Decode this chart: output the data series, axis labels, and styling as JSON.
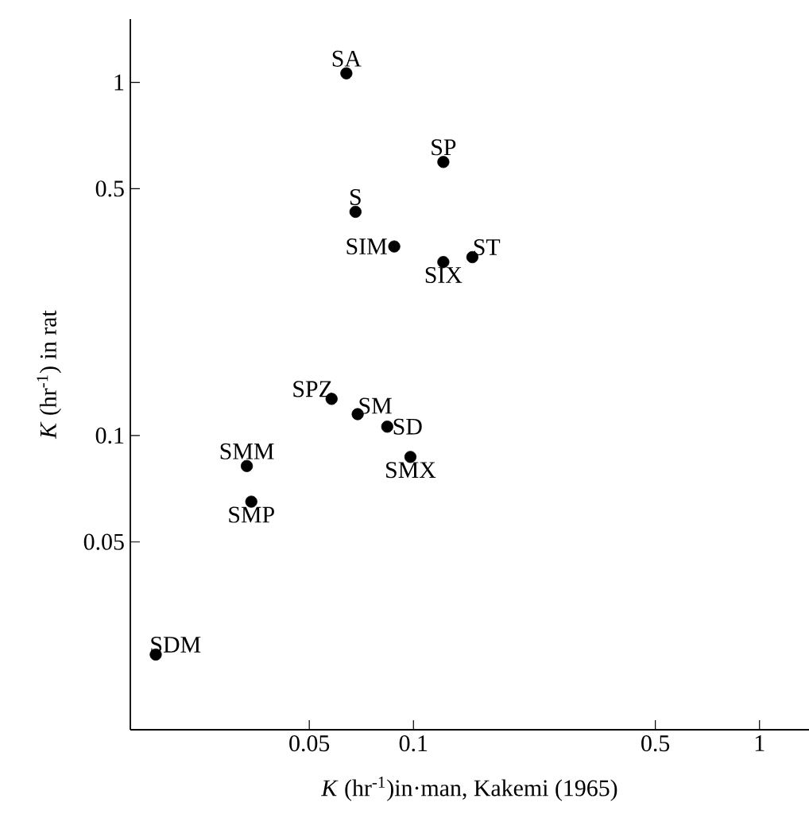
{
  "chart_data": {
    "type": "scatter",
    "xlabel": "*K* (hr$^{-1}$)in·man, Kakemi (1965)",
    "ylabel": "*K* (hr$^{-1}$) in rat",
    "log": "xy",
    "marker": "circle",
    "xlim": [
      0.0152,
      1.39
    ],
    "ylim": [
      0.0147,
      1.51
    ],
    "xticks": [
      0.05,
      0.1,
      0.5,
      1
    ],
    "yticks": [
      0.05,
      0.1,
      0.5,
      1
    ],
    "series": [
      {
        "color": "#000000",
        "x": [
          0.064,
          0.122,
          0.068,
          0.088,
          0.122,
          0.148,
          0.058,
          0.069,
          0.084,
          0.098,
          0.033,
          0.034,
          0.018
        ],
        "values": [
          1.06,
          0.595,
          0.43,
          0.343,
          0.31,
          0.32,
          0.127,
          0.115,
          0.106,
          0.087,
          0.082,
          0.065,
          0.024
        ]
      }
    ],
    "annotations": [
      {
        "text": "SA",
        "x": 0.064,
        "y": 1.06
      },
      {
        "text": "SP",
        "x": 0.122,
        "y": 0.595
      },
      {
        "text": "S",
        "x": 0.068,
        "y": 0.43
      },
      {
        "text": "SIM",
        "x": 0.088,
        "y": 0.343
      },
      {
        "text": "SIX",
        "x": 0.122,
        "y": 0.31
      },
      {
        "text": "ST",
        "x": 0.148,
        "y": 0.32
      },
      {
        "text": "SPZ",
        "x": 0.058,
        "y": 0.127
      },
      {
        "text": "SM",
        "x": 0.069,
        "y": 0.115
      },
      {
        "text": "SD",
        "x": 0.084,
        "y": 0.106
      },
      {
        "text": "SMX",
        "x": 0.098,
        "y": 0.087
      },
      {
        "text": "SMM",
        "x": 0.033,
        "y": 0.082
      },
      {
        "text": "SMP",
        "x": 0.034,
        "y": 0.065
      },
      {
        "text": "SDM",
        "x": 0.018,
        "y": 0.024
      }
    ]
  }
}
